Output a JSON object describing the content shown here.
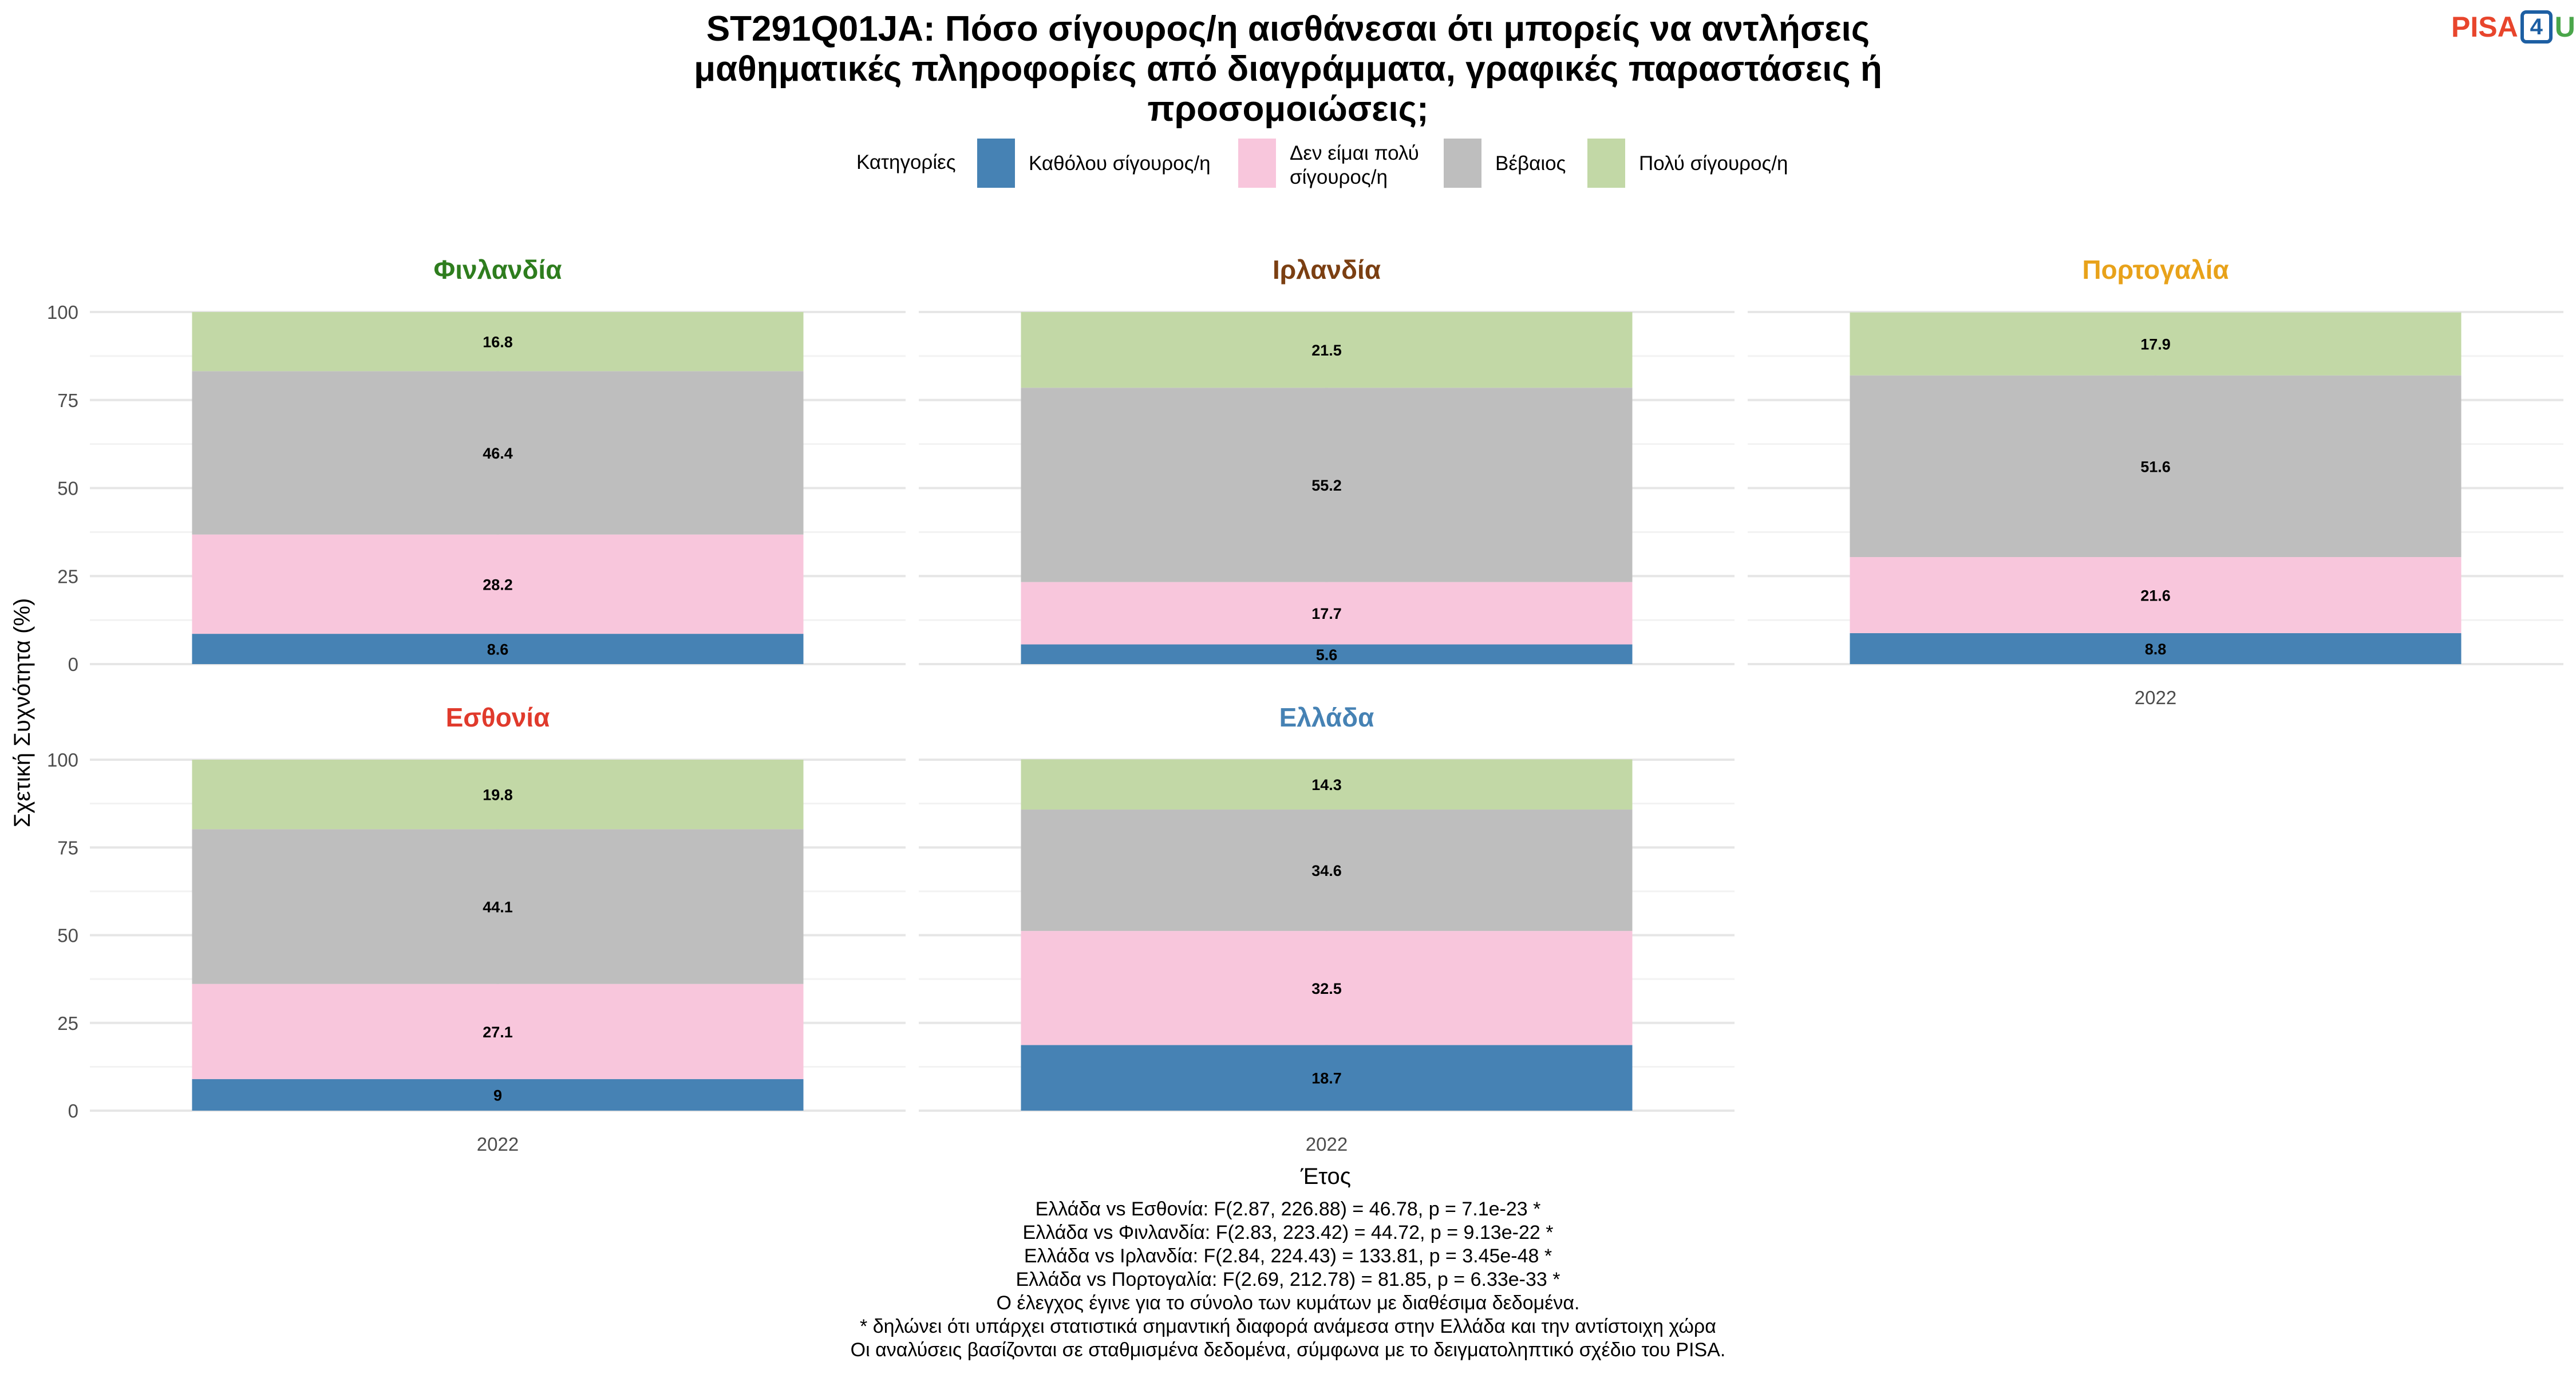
{
  "title_lines": [
    "ST291Q01JA: Πόσο σίγουρος/η αισθάνεσαι ότι μπορείς να αντλήσεις",
    "μαθηματικές πληροφορίες από διαγράμματα, γραφικές παραστάσεις ή",
    "προσομοιώσεις;"
  ],
  "logo": {
    "part1": "PISA",
    "part2": "4",
    "part3": "U"
  },
  "legend": {
    "title": "Κατηγορίες",
    "placement": "top-center"
  },
  "footer_lines": [
    "Ελλάδα vs Εσθονία: F(2.87, 226.88) = 46.78, p = 7.1e-23 *",
    "Ελλάδα vs Φινλανδία: F(2.83, 223.42) = 44.72, p = 9.13e-22 *",
    "Ελλάδα vs Ιρλανδία: F(2.84, 224.43) = 133.81, p = 3.45e-48 *",
    "Ελλάδα vs Πορτογαλία: F(2.69, 212.78) = 81.85, p = 6.33e-33 *",
    "Ο έλεγχος έγινε για το σύνολο των κυμάτων με διαθέσιμα δεδομένα.",
    "* δηλώνει ότι υπάρχει στατιστικά σημαντική διαφορά ανάμεσα στην Ελλάδα και την αντίστοιχη χώρα",
    "Οι αναλύσεις βασίζονται σε σταθμισμένα δεδομένα, σύμφωνα με το δειγματοληπτικό σχέδιο του PISA."
  ],
  "chart_data": {
    "type": "bar",
    "stacked": true,
    "xlabel": "Έτος",
    "ylabel": "Σχετική Συχνότητα (%)",
    "ylim": [
      0,
      100
    ],
    "yticks": [
      0,
      25,
      50,
      75,
      100
    ],
    "grid": true,
    "categories": [
      "2022"
    ],
    "series": [
      {
        "name": "Καθόλου σίγουρος/η",
        "color": "#4682b4"
      },
      {
        "name": "Δεν είμαι πολύ σίγουρος/η",
        "color": "#f8c6dc"
      },
      {
        "name": "Βέβαιος",
        "color": "#bebebe"
      },
      {
        "name": "Πολύ σίγουρος/η",
        "color": "#c2d8a6"
      }
    ],
    "panels": [
      {
        "country": "Φινλανδία",
        "color": "#2e7d1e",
        "x_tick": "",
        "values": [
          8.6,
          28.2,
          46.4,
          16.8
        ]
      },
      {
        "country": "Ιρλανδία",
        "color": "#7b3f12",
        "x_tick": "",
        "values": [
          5.6,
          17.7,
          55.2,
          21.5
        ]
      },
      {
        "country": "Πορτογαλία",
        "color": "#e8a21a",
        "x_tick": "2022",
        "values": [
          8.8,
          21.6,
          51.6,
          17.9
        ]
      },
      {
        "country": "Εσθονία",
        "color": "#e03a2c",
        "x_tick": "2022",
        "values": [
          9,
          27.1,
          44.1,
          19.8
        ]
      },
      {
        "country": "Ελλάδα",
        "color": "#4682b4",
        "x_tick": "2022",
        "values": [
          18.7,
          32.5,
          34.6,
          14.3
        ]
      }
    ]
  }
}
